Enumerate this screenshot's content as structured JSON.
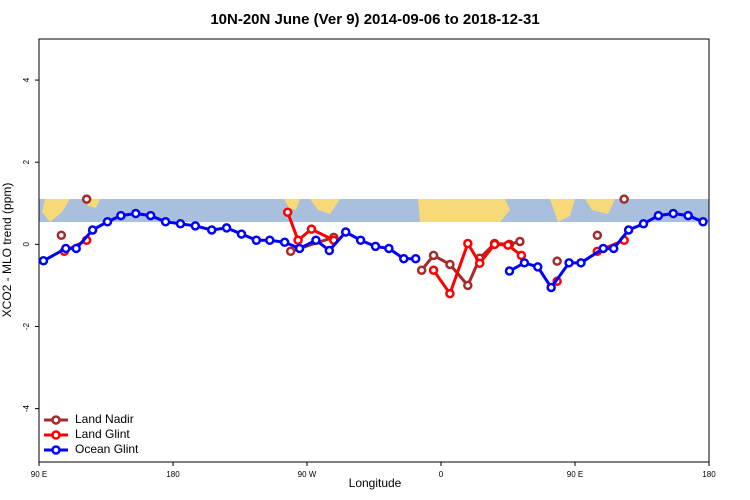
{
  "chart_data": {
    "type": "line",
    "title": "10N-20N June (Ver 9)   2014-09-06 to 2018-12-31",
    "x_label": "Longitude",
    "y_label": "XCO2 - MLO trend (ppm)",
    "xlim": [
      90,
      540
    ],
    "xticks": [
      {
        "value": 90,
        "label": "90 E"
      },
      180,
      {
        "value": 270,
        "label": "90 W"
      },
      {
        "value": 360,
        "label": "0"
      },
      {
        "value": 450,
        "label": "90 E"
      },
      {
        "value": 540,
        "label": "180"
      }
    ],
    "ylim": [
      -5.3,
      5.0
    ],
    "yticks": [
      -4,
      -2,
      0,
      2,
      4
    ],
    "legend": "bottom-left",
    "series": [
      {
        "name": "Land Nadir",
        "color": "#a52a2a",
        "x": [
          105,
          null,
          122,
          null,
          259,
          288,
          null,
          347,
          355,
          366,
          378,
          386,
          396,
          406,
          413,
          null,
          438,
          null,
          465,
          null,
          483
        ],
        "values": [
          0.22,
          null,
          1.1,
          null,
          -0.17,
          0.17,
          null,
          -0.63,
          -0.27,
          -0.49,
          -1.0,
          -0.34,
          0.02,
          0.0,
          0.07,
          null,
          -0.41,
          null,
          0.22,
          null,
          1.1
        ]
      },
      {
        "name": "Land Glint",
        "color": "#ff0000",
        "x": [
          107,
          122,
          null,
          257,
          264,
          273,
          288,
          null,
          355,
          366,
          378,
          386,
          396,
          405,
          414,
          null,
          438,
          null,
          465,
          483
        ],
        "values": [
          -0.17,
          0.1,
          null,
          0.78,
          0.1,
          0.37,
          0.1,
          null,
          -0.63,
          -1.2,
          0.02,
          -0.46,
          0.0,
          -0.02,
          -0.27,
          null,
          -0.9,
          null,
          -0.17,
          0.1
        ]
      },
      {
        "name": "Ocean Glint",
        "color": "#0000ff",
        "x": [
          93,
          108,
          115,
          126,
          136,
          145,
          155,
          165,
          175,
          185,
          195,
          206,
          216,
          226,
          236,
          245,
          255,
          265,
          276,
          285,
          296,
          306,
          316,
          325,
          335,
          343,
          null,
          406,
          416,
          425,
          434,
          446,
          454,
          469,
          476,
          486,
          496,
          506,
          516,
          526,
          536
        ],
        "values": [
          -0.4,
          -0.1,
          -0.1,
          0.35,
          0.55,
          0.7,
          0.75,
          0.7,
          0.55,
          0.5,
          0.45,
          0.35,
          0.4,
          0.25,
          0.1,
          0.1,
          0.05,
          -0.1,
          0.1,
          -0.15,
          0.3,
          0.1,
          -0.05,
          -0.1,
          -0.35,
          -0.35,
          null,
          -0.65,
          -0.45,
          -0.55,
          -1.05,
          -0.45,
          -0.45,
          -0.1,
          -0.1,
          0.35,
          0.5,
          0.7,
          0.75,
          0.7,
          0.55
        ]
      }
    ]
  }
}
